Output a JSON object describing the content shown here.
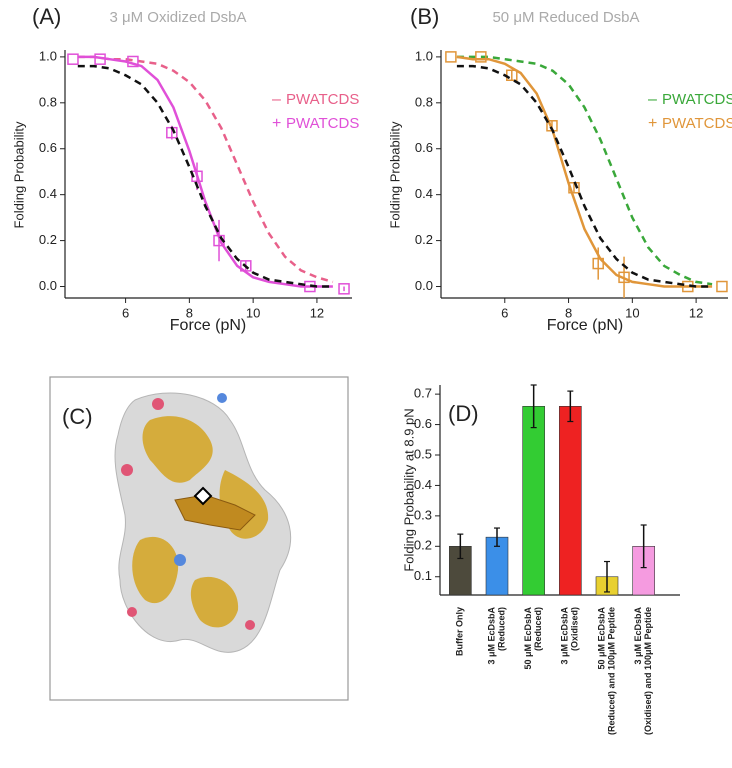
{
  "chart_data": [
    {
      "type": "line",
      "panel_label": "(A)",
      "title": "3 μM Oxidized DsbA",
      "xlabel": "Force (pN)",
      "ylabel": "Folding Probability",
      "xlim": [
        4.1,
        13.1
      ],
      "ylim": [
        -0.05,
        1.03
      ],
      "xticks": [
        6,
        8,
        10,
        12
      ],
      "yticks": [
        {
          "value": 0,
          "label": "0.0"
        },
        0.2,
        0.4,
        0.6,
        0.8,
        {
          "value": 1,
          "label": "1.0"
        }
      ],
      "legend": "upper right",
      "series": [
        {
          "name": "PWATCDS",
          "legend_mark": "–",
          "color": "#e8608a",
          "dashed": true,
          "x": [
            4.5,
            5,
            5.5,
            6,
            6.5,
            7,
            7.5,
            8,
            8.5,
            9,
            9.5,
            10,
            10.5,
            11,
            11.5,
            12,
            12.5
          ],
          "values": [
            1.0,
            1.0,
            0.99,
            0.99,
            0.98,
            0.97,
            0.94,
            0.89,
            0.81,
            0.69,
            0.53,
            0.37,
            0.23,
            0.13,
            0.07,
            0.04,
            0.02
          ]
        },
        {
          "name": "PWATCDS",
          "legend_mark": "+",
          "color": "#e050d8",
          "dashed": false,
          "x": [
            4.5,
            5,
            5.5,
            6,
            6.5,
            7,
            7.5,
            8,
            8.5,
            9,
            9.5,
            10,
            10.5,
            11,
            11.5,
            12,
            12.5
          ],
          "values": [
            1.0,
            1.0,
            0.99,
            0.98,
            0.96,
            0.9,
            0.78,
            0.59,
            0.37,
            0.19,
            0.09,
            0.04,
            0.02,
            0.01,
            0.0,
            0.0,
            0.0
          ],
          "points": {
            "x": [
              4.35,
              5.2,
              6.23,
              7.45,
              8.24,
              8.93,
              9.77,
              11.78,
              12.85
            ],
            "values": [
              0.99,
              0.99,
              0.98,
              0.67,
              0.48,
              0.2,
              0.09,
              0.0,
              -0.01
            ],
            "errors": [
              0,
              0,
              0,
              0.03,
              0.06,
              0.09,
              0.02,
              0,
              0.01
            ]
          }
        },
        {
          "color": "#111111",
          "dashed": true,
          "x": [
            4.5,
            5,
            5.5,
            6,
            6.5,
            7,
            7.5,
            8,
            8.5,
            9,
            9.5,
            10,
            10.5,
            11,
            11.5,
            12,
            12.5
          ],
          "values": [
            0.96,
            0.96,
            0.95,
            0.92,
            0.88,
            0.8,
            0.68,
            0.52,
            0.35,
            0.21,
            0.12,
            0.06,
            0.03,
            0.02,
            0.01,
            0.0,
            0.0
          ]
        }
      ]
    },
    {
      "type": "line",
      "panel_label": "(B)",
      "title": "50 μM Reduced DsbA",
      "xlabel": "Force (pN)",
      "ylabel": "Folding Probability",
      "xlim": [
        4.0,
        13.0
      ],
      "ylim": [
        -0.05,
        1.03
      ],
      "xticks": [
        6,
        8,
        10,
        12
      ],
      "yticks": [
        {
          "value": 0,
          "label": "0.0"
        },
        0.2,
        0.4,
        0.6,
        0.8,
        {
          "value": 1,
          "label": "1.0"
        }
      ],
      "legend": "upper right",
      "series": [
        {
          "name": "PWATCDS",
          "legend_mark": "–",
          "color": "#3aa83a",
          "dashed": true,
          "x": [
            4.5,
            5,
            5.5,
            6,
            6.5,
            7,
            7.5,
            8,
            8.5,
            9,
            9.5,
            10,
            10.5,
            11,
            11.5,
            12,
            12.5
          ],
          "values": [
            1.0,
            1.0,
            1.0,
            0.99,
            0.98,
            0.97,
            0.94,
            0.88,
            0.78,
            0.64,
            0.47,
            0.3,
            0.17,
            0.09,
            0.05,
            0.02,
            0.01
          ]
        },
        {
          "name": "PWATCDS",
          "legend_mark": "+",
          "color": "#e0963a",
          "dashed": false,
          "x": [
            4.5,
            5,
            5.5,
            6,
            6.5,
            7,
            7.5,
            8,
            8.5,
            9,
            9.5,
            10,
            10.5,
            11,
            11.5,
            12,
            12.5
          ],
          "values": [
            1.0,
            0.99,
            0.99,
            0.97,
            0.93,
            0.84,
            0.68,
            0.45,
            0.25,
            0.12,
            0.05,
            0.02,
            0.01,
            0.0,
            0.0,
            0.0,
            0.0
          ],
          "points": {
            "x": [
              4.31,
              5.25,
              6.22,
              7.48,
              8.17,
              8.93,
              9.74,
              11.74,
              12.81
            ],
            "values": [
              1.0,
              1.0,
              0.92,
              0.7,
              0.43,
              0.1,
              0.04,
              0.0,
              0.0
            ],
            "errors": [
              0,
              0,
              0.02,
              0.02,
              0.02,
              0.07,
              0.09,
              0,
              0
            ]
          }
        },
        {
          "color": "#111111",
          "dashed": true,
          "x": [
            4.5,
            5,
            5.5,
            6,
            6.5,
            7,
            7.5,
            8,
            8.5,
            9,
            9.5,
            10,
            10.5,
            11,
            11.5,
            12,
            12.5
          ],
          "values": [
            0.96,
            0.96,
            0.95,
            0.92,
            0.88,
            0.8,
            0.68,
            0.52,
            0.35,
            0.21,
            0.12,
            0.06,
            0.03,
            0.02,
            0.01,
            0.0,
            0.0
          ]
        }
      ]
    },
    {
      "type": "bar",
      "panel_label": "(D)",
      "ylabel": "Folding Probability at 8.9 pN",
      "ylim": [
        0.04,
        0.73
      ],
      "yticks": [
        0.1,
        0.2,
        0.3,
        0.4,
        0.5,
        0.6,
        0.7
      ],
      "categories": [
        [
          "Buffer Only"
        ],
        [
          "3 μM EcDsbA",
          "(Reduced)"
        ],
        [
          "50 μM EcDsbA",
          "(Reduced)"
        ],
        [
          "3 μM EcDsbA",
          "(Oxidised)"
        ],
        [
          "50 μM EcDsbA",
          "(Reduced) and 100μM Peptide"
        ],
        [
          "3 μM EcDsbA",
          "(Oxidised) and 100μM Peptide"
        ]
      ],
      "values": [
        0.2,
        0.23,
        0.66,
        0.66,
        0.1,
        0.2
      ],
      "errors": [
        0.04,
        0.03,
        0.07,
        0.05,
        0.05,
        0.07
      ],
      "colors": [
        "#4d4a3c",
        "#3b8fe8",
        "#33cc33",
        "#ee2222",
        "#e8d030",
        "#f59be0"
      ]
    }
  ],
  "panel_c": {
    "label": "(C)"
  }
}
